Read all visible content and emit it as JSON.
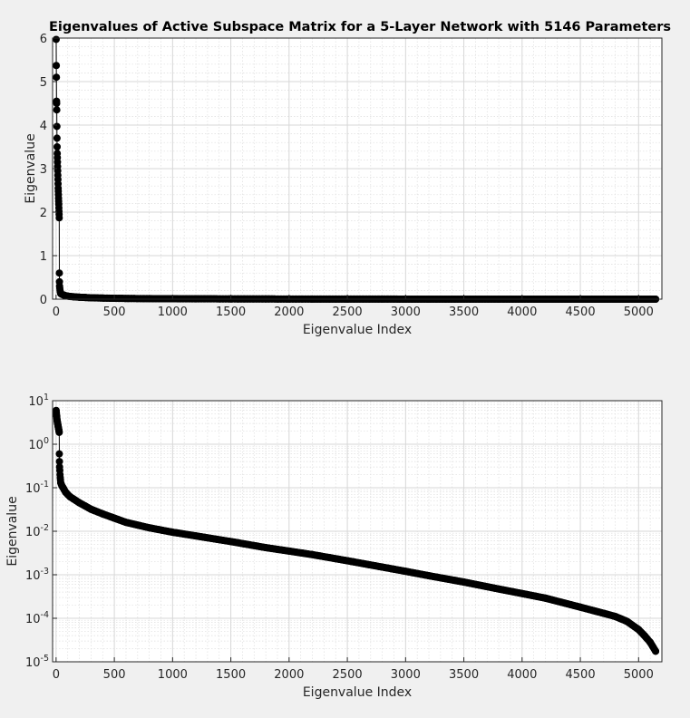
{
  "chart_data": [
    {
      "type": "line",
      "title": "Eigenvalues of Active Subspace Matrix for a 5-Layer Network with 5146 Parameters",
      "xlabel": "Eigenvalue Index",
      "ylabel": "Eigenvalue",
      "xlim": [
        -30,
        5200
      ],
      "ylim": [
        0,
        6
      ],
      "yscale": "linear",
      "xticks": [
        "0",
        "500",
        "1000",
        "1500",
        "2000",
        "2500",
        "3000",
        "3500",
        "4000",
        "4500",
        "5000"
      ],
      "yticks": [
        "0",
        "1",
        "2",
        "3",
        "4",
        "5",
        "6"
      ],
      "grid": "on",
      "marker": "filled-circle",
      "color": "#000000",
      "series": [
        {
          "x": [
            1,
            2,
            3,
            4,
            5,
            6,
            7,
            8,
            9,
            10,
            11,
            12,
            13,
            14,
            15,
            16,
            17,
            18,
            19,
            20,
            21,
            22,
            23,
            24,
            25,
            26,
            27,
            28,
            29,
            30,
            32,
            34,
            36,
            38,
            40,
            45,
            50,
            60,
            70,
            80,
            100,
            120,
            150,
            200,
            250,
            300,
            400,
            500,
            600,
            800,
            1000,
            1200,
            1500,
            1800,
            2000,
            2200,
            2500,
            2800,
            3000,
            3200,
            3500,
            3800,
            4000,
            4200,
            4500,
            4700,
            4800,
            4900,
            5000,
            5050,
            5100,
            5146
          ],
          "y": [
            5.97,
            5.37,
            5.1,
            4.55,
            4.5,
            4.35,
            3.97,
            3.7,
            3.5,
            3.35,
            3.25,
            3.15,
            3.05,
            2.95,
            2.85,
            2.75,
            2.65,
            2.55,
            2.48,
            2.4,
            2.32,
            2.25,
            2.18,
            2.1,
            2.02,
            1.95,
            1.87,
            0.6,
            0.4,
            0.3,
            0.25,
            0.2,
            0.17,
            0.15,
            0.13,
            0.12,
            0.11,
            0.1,
            0.09,
            0.08,
            0.07,
            0.062,
            0.055,
            0.045,
            0.038,
            0.032,
            0.025,
            0.02,
            0.016,
            0.012,
            0.0095,
            0.0078,
            0.0058,
            0.0042,
            0.0035,
            0.0029,
            0.0021,
            0.0015,
            0.0012,
            0.00095,
            0.00068,
            0.00047,
            0.00037,
            0.00029,
            0.00018,
            0.00013,
            0.00011,
            8.5e-05,
            5.5e-05,
            4e-05,
            2.8e-05,
            1.75e-05
          ]
        }
      ]
    },
    {
      "type": "line",
      "title": "",
      "xlabel": "Eigenvalue Index",
      "ylabel": "Eigenvalue",
      "xlim": [
        -30,
        5200
      ],
      "ylim": [
        1e-05,
        10
      ],
      "yscale": "log",
      "xticks": [
        "0",
        "500",
        "1000",
        "1500",
        "2000",
        "2500",
        "3000",
        "3500",
        "4000",
        "4500",
        "5000"
      ],
      "yticks": [
        {
          "base": "10",
          "exp": "-5"
        },
        {
          "base": "10",
          "exp": "-4"
        },
        {
          "base": "10",
          "exp": "-3"
        },
        {
          "base": "10",
          "exp": "-2"
        },
        {
          "base": "10",
          "exp": "-1"
        },
        {
          "base": "10",
          "exp": "0"
        },
        {
          "base": "10",
          "exp": "1"
        }
      ],
      "grid": "on",
      "minor_grid": "on",
      "marker": "filled-circle",
      "color": "#000000",
      "series_ref": 0
    }
  ]
}
